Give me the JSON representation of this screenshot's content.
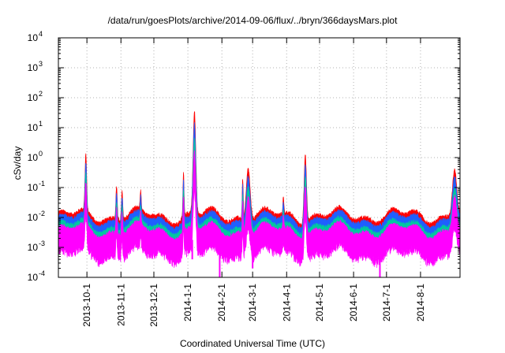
{
  "chart_data": {
    "type": "line",
    "title": "/data/run/goesPlots/archive/2014-09-06/flux/../bryn/366daysMars.plot",
    "xlabel": "Coordinated Universal Time (UTC)",
    "ylabel": "cSv/day",
    "yscale": "log",
    "ylim": [
      "1e-4",
      "1e4"
    ],
    "xlim": [
      "2013-09-05",
      "2014-09-06"
    ],
    "grid": true,
    "legend": "none",
    "y_ticks": [
      {
        "base": "10",
        "exp": "-4"
      },
      {
        "base": "10",
        "exp": "-3"
      },
      {
        "base": "10",
        "exp": "-2"
      },
      {
        "base": "10",
        "exp": "-1"
      },
      {
        "base": "10",
        "exp": "0"
      },
      {
        "base": "10",
        "exp": "1"
      },
      {
        "base": "10",
        "exp": "2"
      },
      {
        "base": "10",
        "exp": "3"
      },
      {
        "base": "10",
        "exp": "4"
      }
    ],
    "x_ticks": [
      "2013-10-1",
      "2013-11-1",
      "2013-12-1",
      "2014-1-1",
      "2014-2-1",
      "2014-3-1",
      "2014-4-1",
      "2014-5-1",
      "2014-6-1",
      "2014-7-1",
      "2014-8-1"
    ],
    "series": [
      {
        "color": "#ff0000",
        "baseline": 0.0075,
        "noise_hi": 0.01,
        "noise_lo": 0.0045
      },
      {
        "color": "#1f5fff",
        "baseline": 0.0055,
        "noise_hi": 0.0075,
        "noise_lo": 0.0035
      },
      {
        "color": "#00c8a0",
        "baseline": 0.0035,
        "noise_hi": 0.0045,
        "noise_lo": 0.0025
      },
      {
        "color": "#ff00ff",
        "baseline": 0.0018,
        "noise_hi": 0.0032,
        "noise_lo": 0.0009
      }
    ],
    "events": [
      {
        "date": "2013-09-30",
        "peak": 0.55,
        "width_days": 1.5
      },
      {
        "date": "2013-10-28",
        "peak": 0.1,
        "width_days": 1.2
      },
      {
        "date": "2013-11-02",
        "peak": 0.07,
        "width_days": 1.2
      },
      {
        "date": "2013-11-19",
        "peak": 0.03,
        "width_days": 1.0
      },
      {
        "date": "2013-12-28",
        "peak": 0.22,
        "width_days": 1.0
      },
      {
        "date": "2014-01-07",
        "peak": 20,
        "width_days": 2.5
      },
      {
        "date": "2014-02-20",
        "peak": 0.18,
        "width_days": 1.0
      },
      {
        "date": "2014-02-25",
        "peak": 0.45,
        "width_days": 3.5
      },
      {
        "date": "2014-03-29",
        "peak": 0.025,
        "width_days": 1.0
      },
      {
        "date": "2014-04-18",
        "peak": 1.4,
        "width_days": 2.2
      },
      {
        "date": "2014-09-01",
        "peak": 0.3,
        "width_days": 4.0
      }
    ],
    "dips": [
      {
        "date": "2014-01-05",
        "value": 0.0004
      },
      {
        "date": "2014-01-30",
        "value": 0.0001
      },
      {
        "date": "2014-03-01",
        "value": 0.0002
      },
      {
        "date": "2014-06-25",
        "value": 0.0001
      }
    ]
  }
}
